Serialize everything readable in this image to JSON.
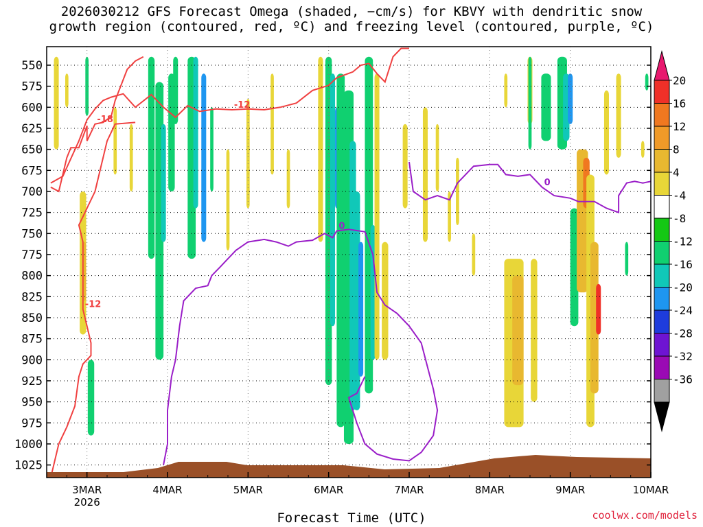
{
  "title": "2026030212 GFS Forecast Omega (shaded, −cm/s) for KBVY with dendritic snow\ngrowth region (contoured, red, ºC) and freezing level (contoured, purple, ºC)",
  "watermark": "coolwx.com/models",
  "chart_data": {
    "type": "heatmap",
    "title": "2026030212 GFS Forecast Omega (shaded, −cm/s) for KBVY with dendritic snow growth region (contoured, red, ºC) and freezing level (contoured, purple, ºC)",
    "xlabel": "Forecast Time (UTC)",
    "ylabel": "",
    "x_ticks": [
      {
        "day": 3,
        "label": "3MAR",
        "sub": "2026"
      },
      {
        "day": 4,
        "label": "4MAR",
        "sub": ""
      },
      {
        "day": 5,
        "label": "5MAR",
        "sub": ""
      },
      {
        "day": 6,
        "label": "6MAR",
        "sub": ""
      },
      {
        "day": 7,
        "label": "7MAR",
        "sub": ""
      },
      {
        "day": 8,
        "label": "8MAR",
        "sub": ""
      },
      {
        "day": 9,
        "label": "9MAR",
        "sub": ""
      },
      {
        "day": 10,
        "label": "10MAR",
        "sub": ""
      }
    ],
    "xlim": [
      2.5,
      10.0
    ],
    "y_ticks": [
      "550",
      "575",
      "600",
      "625",
      "650",
      "675",
      "700",
      "725",
      "750",
      "775",
      "800",
      "825",
      "850",
      "875",
      "900",
      "925",
      "950",
      "975",
      "1000",
      "1025"
    ],
    "ylim": [
      528,
      1040
    ],
    "colorbar": {
      "labels": [
        "20",
        "16",
        "12",
        "8",
        "4",
        "-4",
        "-8",
        "-12",
        "-16",
        "-20",
        "-24",
        "-28",
        "-32",
        "-36"
      ],
      "colors": [
        "#e8186e",
        "#f03028",
        "#f07820",
        "#f09a28",
        "#e8b830",
        "#e8d638",
        "#ffffff",
        "#14c814",
        "#10d070",
        "#10c8b8",
        "#1e96f0",
        "#1e3cdc",
        "#6e14d2",
        "#9a0ab4",
        "#a0a0a0",
        "#000000"
      ]
    },
    "series": [
      {
        "name": "Dendritic -12 (red)",
        "color": "#f04040",
        "label": "-12",
        "points": [
          [
            2.55,
            690
          ],
          [
            2.7,
            682
          ],
          [
            2.9,
            640
          ],
          [
            3.0,
            615
          ],
          [
            3.1,
            602
          ],
          [
            3.2,
            592
          ],
          [
            3.3,
            588
          ],
          [
            3.45,
            584
          ],
          [
            3.6,
            600
          ],
          [
            3.8,
            585
          ],
          [
            3.95,
            600
          ],
          [
            4.1,
            612
          ],
          [
            4.25,
            598
          ],
          [
            4.4,
            605
          ],
          [
            4.6,
            602
          ],
          [
            4.8,
            603
          ],
          [
            5.0,
            602
          ],
          [
            5.2,
            603
          ],
          [
            5.4,
            600
          ],
          [
            5.6,
            595
          ],
          [
            5.8,
            580
          ],
          [
            6.0,
            574
          ],
          [
            6.1,
            565
          ],
          [
            6.3,
            558
          ],
          [
            6.4,
            550
          ],
          [
            6.5,
            548
          ],
          [
            6.6,
            560
          ],
          [
            6.7,
            570
          ],
          [
            6.8,
            540
          ],
          [
            6.9,
            530
          ],
          [
            7.0,
            530
          ]
        ]
      },
      {
        "name": "Dendritic -18 (red)",
        "color": "#f04040",
        "label": "-18",
        "points": [
          [
            2.55,
            695
          ],
          [
            2.65,
            700
          ],
          [
            2.75,
            660
          ],
          [
            2.8,
            648
          ],
          [
            2.9,
            648
          ],
          [
            3.0,
            622
          ],
          [
            3.0,
            640
          ],
          [
            3.1,
            620
          ],
          [
            3.2,
            618
          ],
          [
            3.3,
            611
          ],
          [
            3.35,
            592
          ],
          [
            3.5,
            555
          ],
          [
            3.6,
            545
          ],
          [
            3.7,
            540
          ]
        ]
      },
      {
        "name": "Dendritic lower -12 (red)",
        "color": "#f04040",
        "label": "-12",
        "points": [
          [
            2.55,
            1040
          ],
          [
            2.65,
            1000
          ],
          [
            2.75,
            980
          ],
          [
            2.85,
            955
          ],
          [
            2.9,
            920
          ],
          [
            2.95,
            905
          ],
          [
            3.0,
            900
          ],
          [
            3.05,
            895
          ],
          [
            3.05,
            880
          ],
          [
            3.0,
            860
          ],
          [
            2.95,
            840
          ],
          [
            2.95,
            820
          ],
          [
            2.95,
            800
          ],
          [
            2.95,
            780
          ],
          [
            2.95,
            760
          ],
          [
            2.9,
            740
          ],
          [
            2.95,
            730
          ],
          [
            3.1,
            700
          ],
          [
            3.25,
            640
          ],
          [
            3.35,
            620
          ],
          [
            3.6,
            618
          ]
        ]
      },
      {
        "name": "Freezing level 0 (purple)",
        "color": "#9a1ec8",
        "label": "0",
        "points": [
          [
            3.95,
            1025
          ],
          [
            4.0,
            1000
          ],
          [
            4.0,
            960
          ],
          [
            4.05,
            920
          ],
          [
            4.1,
            900
          ],
          [
            4.15,
            860
          ],
          [
            4.2,
            830
          ],
          [
            4.35,
            815
          ],
          [
            4.5,
            812
          ],
          [
            4.55,
            800
          ],
          [
            4.65,
            790
          ],
          [
            4.75,
            780
          ],
          [
            4.85,
            770
          ],
          [
            5.0,
            760
          ],
          [
            5.2,
            757
          ],
          [
            5.35,
            760
          ],
          [
            5.5,
            765
          ],
          [
            5.6,
            760
          ],
          [
            5.8,
            758
          ],
          [
            5.95,
            750
          ],
          [
            6.05,
            755
          ],
          [
            6.1,
            747
          ],
          [
            6.25,
            745
          ],
          [
            6.45,
            748
          ],
          [
            6.55,
            775
          ],
          [
            6.6,
            820
          ],
          [
            6.7,
            835
          ],
          [
            6.85,
            845
          ],
          [
            7.0,
            860
          ],
          [
            7.15,
            880
          ],
          [
            7.3,
            935
          ],
          [
            7.35,
            960
          ],
          [
            7.3,
            990
          ],
          [
            7.15,
            1010
          ],
          [
            7.0,
            1020
          ],
          [
            6.8,
            1018
          ],
          [
            6.6,
            1012
          ],
          [
            6.45,
            1000
          ],
          [
            6.35,
            975
          ],
          [
            6.3,
            960
          ],
          [
            6.25,
            945
          ],
          [
            6.35,
            940
          ],
          [
            6.45,
            920
          ]
        ]
      },
      {
        "name": "Freezing level upper 0 (purple)",
        "color": "#9a1ec8",
        "label": "0",
        "points": [
          [
            7.0,
            665
          ],
          [
            7.05,
            700
          ],
          [
            7.2,
            710
          ],
          [
            7.35,
            705
          ],
          [
            7.5,
            710
          ],
          [
            7.6,
            690
          ],
          [
            7.8,
            670
          ],
          [
            8.0,
            668
          ],
          [
            8.1,
            668
          ],
          [
            8.2,
            680
          ],
          [
            8.35,
            682
          ],
          [
            8.5,
            680
          ],
          [
            8.65,
            695
          ],
          [
            8.8,
            705
          ],
          [
            9.0,
            708
          ],
          [
            9.1,
            712
          ],
          [
            9.3,
            712
          ],
          [
            9.45,
            720
          ],
          [
            9.6,
            725
          ],
          [
            9.6,
            705
          ],
          [
            9.7,
            690
          ],
          [
            9.8,
            688
          ],
          [
            9.9,
            690
          ],
          [
            10.0,
            688
          ]
        ]
      }
    ]
  }
}
